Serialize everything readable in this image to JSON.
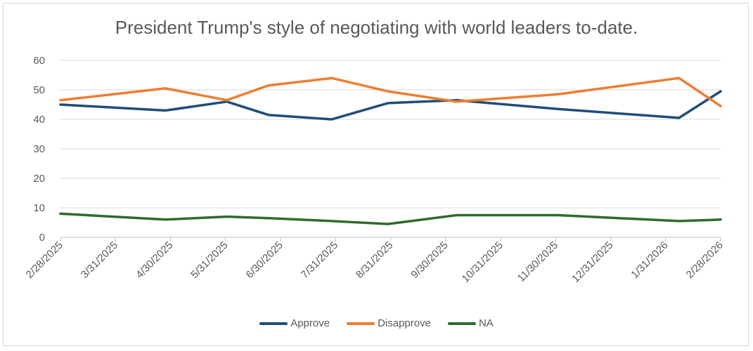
{
  "chart_data": {
    "type": "line",
    "title": "President Trump's style of negotiating with world leaders to-date.",
    "xlabel": "",
    "ylabel": "",
    "ylim": [
      0,
      60
    ],
    "yticks": [
      0,
      10,
      20,
      30,
      40,
      50,
      60
    ],
    "x_tick_labels": [
      "2/28/2025",
      "3/31/2025",
      "4/30/2025",
      "5/31/2025",
      "6/30/2025",
      "7/31/2025",
      "8/31/2025",
      "9/30/2025",
      "10/31/2025",
      "11/30/2025",
      "12/31/2025",
      "1/31/2026",
      "2/28/2026"
    ],
    "x_range": [
      "2025-02-28",
      "2026-02-28"
    ],
    "grid": true,
    "legend_position": "bottom",
    "series": [
      {
        "name": "Approve",
        "color": "#1f4e79",
        "x": [
          "2025-02-28",
          "2025-04-27",
          "2025-05-31",
          "2025-06-23",
          "2025-07-28",
          "2025-08-28",
          "2025-10-05",
          "2025-11-30",
          "2026-02-05",
          "2026-02-28"
        ],
        "values": [
          45,
          43,
          46,
          41.5,
          40,
          45.5,
          46.5,
          43.5,
          40.5,
          49.5
        ]
      },
      {
        "name": "Disapprove",
        "color": "#ed7d31",
        "x": [
          "2025-02-28",
          "2025-04-27",
          "2025-05-31",
          "2025-06-23",
          "2025-07-28",
          "2025-08-28",
          "2025-10-05",
          "2025-11-30",
          "2026-02-05",
          "2026-02-28"
        ],
        "values": [
          46.5,
          50.5,
          46.5,
          51.5,
          54,
          49.5,
          46,
          48.5,
          54,
          44.5
        ]
      },
      {
        "name": "NA",
        "color": "#2e6b2e",
        "x": [
          "2025-02-28",
          "2025-04-27",
          "2025-05-31",
          "2025-06-23",
          "2025-07-28",
          "2025-08-28",
          "2025-10-05",
          "2025-11-30",
          "2026-02-05",
          "2026-02-28"
        ],
        "values": [
          8,
          6,
          7,
          6.5,
          5.5,
          4.5,
          7.5,
          7.5,
          5.5,
          6
        ]
      }
    ]
  }
}
